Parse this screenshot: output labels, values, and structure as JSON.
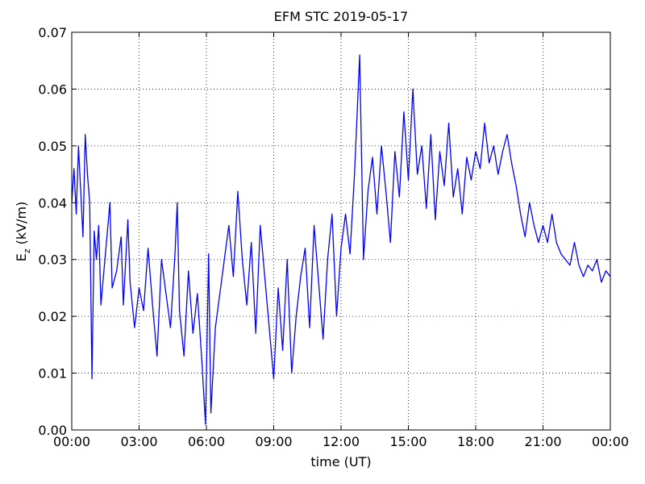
{
  "chart_data": {
    "type": "line",
    "title": "EFM STC    2019-05-17",
    "xlabel": "time (UT)",
    "ylabel": {
      "base": "E",
      "subscript": "z",
      "unit": "(kV/m)"
    },
    "xlim": [
      0,
      24
    ],
    "xticks": [
      {
        "value": 0,
        "label": "00:00"
      },
      {
        "value": 3,
        "label": "03:00"
      },
      {
        "value": 6,
        "label": "06:00"
      },
      {
        "value": 9,
        "label": "09:00"
      },
      {
        "value": 12,
        "label": "12:00"
      },
      {
        "value": 15,
        "label": "15:00"
      },
      {
        "value": 18,
        "label": "18:00"
      },
      {
        "value": 21,
        "label": "21:00"
      },
      {
        "value": 24,
        "label": "00:00"
      }
    ],
    "ylim": [
      0,
      0.07
    ],
    "yticks": [
      {
        "value": 0,
        "label": "0.00"
      },
      {
        "value": 0.01,
        "label": "0.01"
      },
      {
        "value": 0.02,
        "label": "0.02"
      },
      {
        "value": 0.03,
        "label": "0.03"
      },
      {
        "value": 0.04,
        "label": "0.04"
      },
      {
        "value": 0.05,
        "label": "0.05"
      },
      {
        "value": 0.06,
        "label": "0.06"
      },
      {
        "value": 0.07,
        "label": "0.07"
      }
    ],
    "grid": true,
    "series": [
      {
        "color": "#0000ff",
        "x": [
          0,
          0.1,
          0.2,
          0.3,
          0.4,
          0.5,
          0.6,
          0.7,
          0.8,
          0.9,
          1.0,
          1.1,
          1.2,
          1.3,
          1.5,
          1.7,
          1.8,
          2.0,
          2.2,
          2.3,
          2.5,
          2.6,
          2.8,
          3.0,
          3.2,
          3.4,
          3.6,
          3.8,
          4.0,
          4.2,
          4.4,
          4.6,
          4.7,
          4.8,
          5.0,
          5.2,
          5.4,
          5.6,
          5.8,
          5.96,
          6.1,
          6.2,
          6.4,
          6.6,
          6.8,
          7.0,
          7.2,
          7.4,
          7.6,
          7.8,
          8.0,
          8.2,
          8.4,
          8.6,
          8.8,
          9.0,
          9.2,
          9.4,
          9.6,
          9.8,
          10.0,
          10.2,
          10.4,
          10.6,
          10.8,
          11.0,
          11.2,
          11.4,
          11.6,
          11.8,
          12.0,
          12.2,
          12.4,
          12.6,
          12.83,
          13.0,
          13.2,
          13.4,
          13.6,
          13.8,
          14.0,
          14.2,
          14.4,
          14.6,
          14.8,
          15.0,
          15.2,
          15.4,
          15.6,
          15.8,
          16.0,
          16.2,
          16.4,
          16.6,
          16.8,
          17.0,
          17.2,
          17.4,
          17.6,
          17.8,
          18.0,
          18.2,
          18.4,
          18.6,
          18.8,
          19.0,
          19.2,
          19.4,
          19.6,
          19.8,
          20.0,
          20.2,
          20.4,
          20.6,
          20.8,
          21.0,
          21.2,
          21.4,
          21.6,
          21.8,
          22.0,
          22.2,
          22.4,
          22.6,
          22.8,
          23.0,
          23.2,
          23.4,
          23.6,
          23.8,
          24.0
        ],
        "values": [
          0.04,
          0.046,
          0.038,
          0.05,
          0.042,
          0.034,
          0.052,
          0.045,
          0.04,
          0.009,
          0.035,
          0.03,
          0.036,
          0.022,
          0.031,
          0.04,
          0.025,
          0.028,
          0.034,
          0.022,
          0.037,
          0.026,
          0.018,
          0.025,
          0.021,
          0.032,
          0.022,
          0.013,
          0.03,
          0.024,
          0.018,
          0.031,
          0.04,
          0.021,
          0.013,
          0.028,
          0.017,
          0.024,
          0.012,
          0.001,
          0.031,
          0.003,
          0.018,
          0.024,
          0.03,
          0.036,
          0.027,
          0.042,
          0.03,
          0.022,
          0.033,
          0.017,
          0.036,
          0.027,
          0.018,
          0.009,
          0.025,
          0.014,
          0.03,
          0.01,
          0.02,
          0.027,
          0.032,
          0.018,
          0.036,
          0.026,
          0.016,
          0.03,
          0.038,
          0.02,
          0.032,
          0.038,
          0.031,
          0.045,
          0.066,
          0.03,
          0.042,
          0.048,
          0.038,
          0.05,
          0.042,
          0.033,
          0.049,
          0.041,
          0.056,
          0.044,
          0.06,
          0.045,
          0.05,
          0.039,
          0.052,
          0.037,
          0.049,
          0.043,
          0.054,
          0.041,
          0.046,
          0.038,
          0.048,
          0.044,
          0.049,
          0.046,
          0.054,
          0.047,
          0.05,
          0.045,
          0.049,
          0.052,
          0.047,
          0.043,
          0.038,
          0.034,
          0.04,
          0.036,
          0.033,
          0.036,
          0.033,
          0.038,
          0.033,
          0.031,
          0.03,
          0.029,
          0.033,
          0.029,
          0.027,
          0.029,
          0.028,
          0.03,
          0.026,
          0.028,
          0.027
        ]
      }
    ]
  }
}
